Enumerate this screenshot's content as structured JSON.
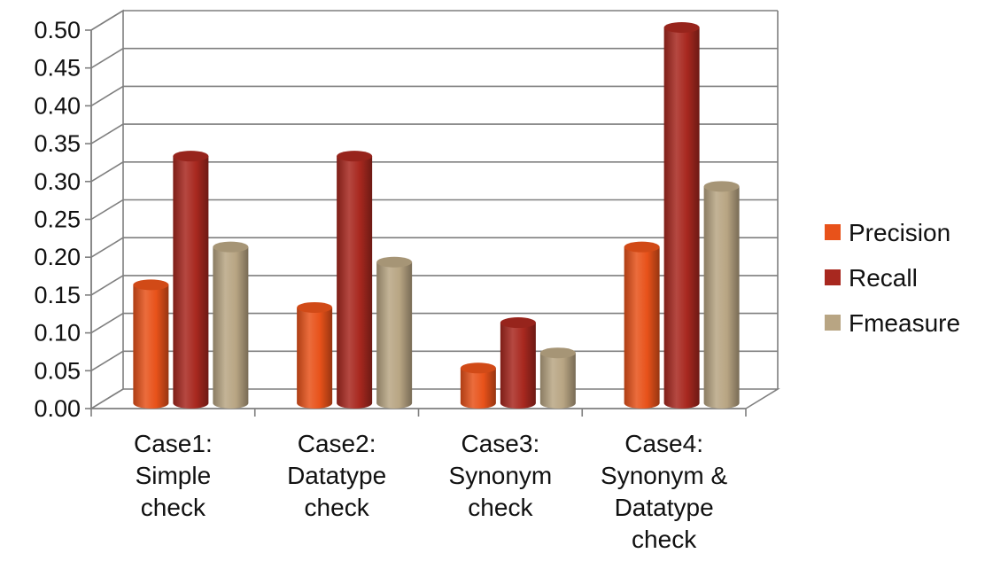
{
  "chart_data": {
    "type": "bar",
    "title": "",
    "xlabel": "",
    "ylabel": "",
    "ylim": [
      0,
      0.5
    ],
    "yticks": [
      "0.00",
      "0.05",
      "0.10",
      "0.15",
      "0.20",
      "0.25",
      "0.30",
      "0.35",
      "0.40",
      "0.45",
      "0.50"
    ],
    "grid": true,
    "legend_position": "right",
    "style": "3d-cylinder",
    "categories": [
      [
        "Case1:",
        "Simple",
        "check"
      ],
      [
        "Case2:",
        "Datatype",
        "check"
      ],
      [
        "Case3:",
        "Synonym",
        "check"
      ],
      [
        "Case4:",
        "Synonym &",
        "Datatype",
        "check"
      ]
    ],
    "series": [
      {
        "name": "Precision",
        "color": "#e8521a",
        "values": [
          0.16,
          0.13,
          0.05,
          0.21
        ]
      },
      {
        "name": "Recall",
        "color": "#a8281f",
        "values": [
          0.33,
          0.33,
          0.11,
          0.5
        ]
      },
      {
        "name": "Fmeasure",
        "color": "#b8a583",
        "values": [
          0.21,
          0.19,
          0.07,
          0.29
        ]
      }
    ]
  }
}
